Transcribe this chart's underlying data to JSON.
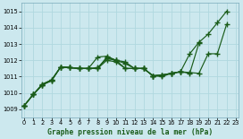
{
  "title": "Graphe pression niveau de la mer (hPa)",
  "bg_color": "#cce8ee",
  "grid_color": "#b0d8df",
  "line_color": "#1a5c1a",
  "xlim": [
    -0.3,
    23.3
  ],
  "ylim": [
    1008.5,
    1015.5
  ],
  "xticks": [
    0,
    1,
    2,
    3,
    4,
    5,
    6,
    7,
    8,
    9,
    10,
    11,
    12,
    13,
    14,
    15,
    16,
    17,
    18,
    19,
    20,
    21,
    22,
    23
  ],
  "yticks": [
    1009,
    1010,
    1011,
    1012,
    1013,
    1014,
    1015
  ],
  "series": [
    {
      "x": [
        0,
        1,
        2,
        3,
        4,
        5,
        6,
        7,
        8,
        9,
        10,
        11,
        12,
        13,
        14,
        15,
        16,
        17,
        18,
        19,
        20,
        21,
        22
      ],
      "y": [
        1009.2,
        1009.9,
        1010.5,
        1010.75,
        1011.6,
        1011.55,
        1011.5,
        1011.5,
        1012.2,
        1012.25,
        1012.0,
        1011.9,
        1011.5,
        1011.5,
        1011.05,
        1011.1,
        1011.2,
        1011.3,
        1012.4,
        1013.1,
        1013.6,
        1014.3,
        1015.0
      ]
    },
    {
      "x": [
        0,
        1,
        2,
        3,
        4,
        5,
        6,
        7,
        8,
        9,
        10,
        11,
        12,
        13,
        14,
        15,
        16,
        17,
        18,
        19,
        20,
        21,
        22
      ],
      "y": [
        1009.2,
        1009.9,
        1010.55,
        1010.8,
        1011.6,
        1011.55,
        1011.5,
        1011.5,
        1011.55,
        1012.1,
        1012.0,
        1011.8,
        1011.5,
        1011.5,
        1011.05,
        1011.1,
        1011.2,
        1011.3,
        1011.25,
        1011.2,
        1012.4,
        1012.4,
        1014.2
      ]
    },
    {
      "x": [
        0,
        1,
        2,
        3,
        4,
        5,
        6,
        7,
        8,
        9,
        10,
        11,
        12,
        13,
        14,
        15,
        16,
        17,
        18,
        19
      ],
      "y": [
        1009.2,
        1009.9,
        1010.5,
        1010.75,
        1011.6,
        1011.55,
        1011.5,
        1011.5,
        1011.5,
        1012.0,
        1011.9,
        1011.5,
        1011.5,
        1011.5,
        1011.05,
        1011.0,
        1011.2,
        1011.3,
        1011.2,
        1013.05
      ]
    },
    {
      "x": [
        0,
        1,
        2,
        3,
        4,
        5,
        6,
        7,
        8,
        9,
        10,
        11,
        12,
        13,
        14,
        15,
        16,
        17
      ],
      "y": [
        1009.2,
        1009.9,
        1010.5,
        1010.8,
        1011.6,
        1011.55,
        1011.5,
        1011.5,
        1011.5,
        1012.2,
        1012.0,
        1011.5,
        1011.5,
        1011.5,
        1011.05,
        1011.1,
        1011.2,
        1011.3
      ]
    }
  ]
}
